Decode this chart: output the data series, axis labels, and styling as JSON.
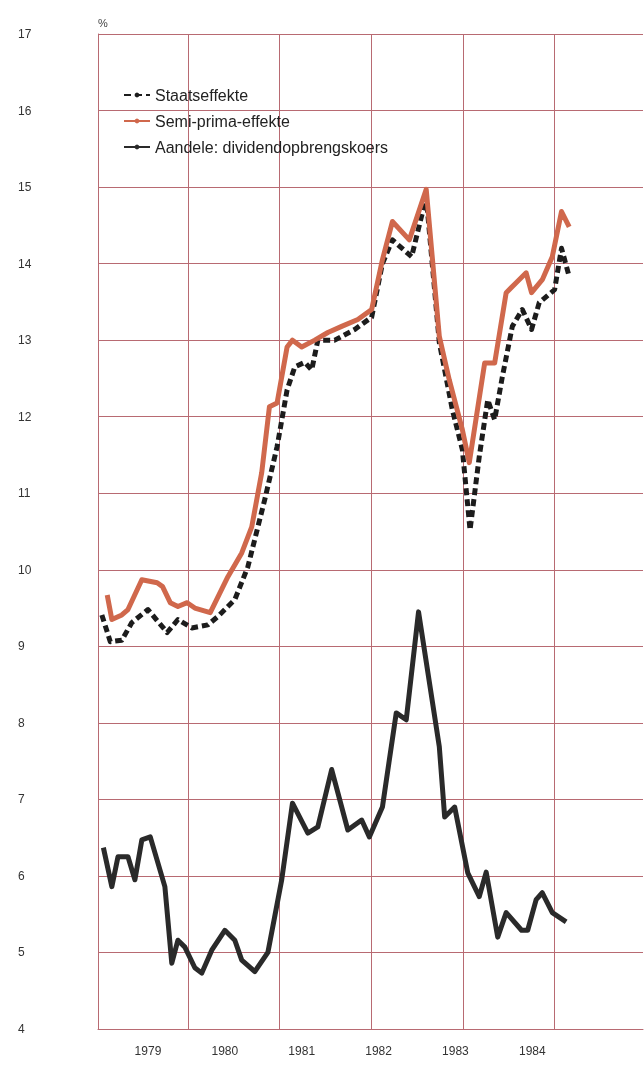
{
  "chart_data": {
    "type": "line",
    "ylabel": "%",
    "xlim": [
      1978.85,
      1985.94
    ],
    "ylim": [
      4,
      17
    ],
    "xticks": [
      {
        "value": 1979.5,
        "label": "1979"
      },
      {
        "value": 1980.5,
        "label": "1980"
      },
      {
        "value": 1981.5,
        "label": "1981"
      },
      {
        "value": 1982.5,
        "label": "1982"
      },
      {
        "value": 1983.5,
        "label": "1983"
      },
      {
        "value": 1984.5,
        "label": "1984"
      },
      {
        "value": 1980.03,
        "label": null
      },
      {
        "value": 1981.21,
        "label": null
      },
      {
        "value": 1982.41,
        "label": null
      },
      {
        "value": 1983.6,
        "label": null
      },
      {
        "value": 1984.79,
        "label": null
      }
    ],
    "yticks": [
      4,
      5,
      6,
      7,
      8,
      9,
      10,
      11,
      12,
      13,
      14,
      15,
      16,
      17
    ],
    "grid": true,
    "legend": "top left",
    "marker": "none",
    "series": [
      {
        "name": "Staatseffekte",
        "color": "#1c1c1c",
        "line_style": "dashed",
        "x": [
          1978.9,
          1979.01,
          1979.16,
          1979.29,
          1979.5,
          1979.75,
          1979.89,
          1980.07,
          1980.28,
          1980.41,
          1980.63,
          1980.8,
          1981.02,
          1981.18,
          1981.31,
          1981.41,
          1981.54,
          1981.63,
          1981.71,
          1981.93,
          1982.19,
          1982.41,
          1982.55,
          1982.68,
          1982.93,
          1983.12,
          1983.29,
          1983.46,
          1983.59,
          1983.69,
          1983.81,
          1983.92,
          1984.01,
          1984.11,
          1984.24,
          1984.37,
          1984.49,
          1984.59,
          1984.79,
          1984.88,
          1984.98
        ],
        "values": [
          9.41,
          9.06,
          9.08,
          9.31,
          9.48,
          9.18,
          9.35,
          9.24,
          9.28,
          9.39,
          9.61,
          10.04,
          10.92,
          11.61,
          12.35,
          12.65,
          12.71,
          12.61,
          13.0,
          13.0,
          13.14,
          13.3,
          14.0,
          14.31,
          14.09,
          14.87,
          12.97,
          12.09,
          11.57,
          10.52,
          11.48,
          12.22,
          11.96,
          12.52,
          13.18,
          13.4,
          13.14,
          13.49,
          13.66,
          14.2,
          13.83
        ]
      },
      {
        "name": "Semi-prima-effekte",
        "color": "#d0684c",
        "line_style": "solid",
        "x": [
          1978.97,
          1979.03,
          1979.16,
          1979.24,
          1979.42,
          1979.62,
          1979.69,
          1979.79,
          1979.89,
          1980.01,
          1980.11,
          1980.31,
          1980.54,
          1980.72,
          1980.85,
          1980.98,
          1981.08,
          1981.18,
          1981.31,
          1981.38,
          1981.5,
          1981.67,
          1981.84,
          1982.02,
          1982.23,
          1982.41,
          1982.55,
          1982.68,
          1982.9,
          1983.12,
          1983.29,
          1983.42,
          1983.59,
          1983.68,
          1983.88,
          1984.01,
          1984.16,
          1984.29,
          1984.42,
          1984.49,
          1984.63,
          1984.76,
          1984.88,
          1984.98
        ],
        "values": [
          9.67,
          9.35,
          9.41,
          9.48,
          9.87,
          9.83,
          9.78,
          9.57,
          9.52,
          9.57,
          9.5,
          9.44,
          9.91,
          10.22,
          10.56,
          11.27,
          12.13,
          12.18,
          12.91,
          13.0,
          12.91,
          13.0,
          13.1,
          13.18,
          13.27,
          13.4,
          14.05,
          14.55,
          14.31,
          14.97,
          13.05,
          12.48,
          11.83,
          11.4,
          12.7,
          12.7,
          13.62,
          13.75,
          13.88,
          13.62,
          13.79,
          14.09,
          14.68,
          14.48
        ]
      },
      {
        "name": "Aandele: dividendopbrengskoers",
        "color": "#2a2a2a",
        "line_style": "solid",
        "x": [
          1978.92,
          1979.03,
          1979.11,
          1979.24,
          1979.33,
          1979.42,
          1979.53,
          1979.72,
          1979.81,
          1979.89,
          1979.98,
          1980.11,
          1980.2,
          1980.33,
          1980.5,
          1980.63,
          1980.72,
          1980.89,
          1981.06,
          1981.24,
          1981.38,
          1981.58,
          1981.71,
          1981.89,
          1982.1,
          1982.28,
          1982.38,
          1982.55,
          1982.73,
          1982.86,
          1983.02,
          1983.29,
          1983.36,
          1983.49,
          1983.66,
          1983.81,
          1983.9,
          1984.05,
          1984.16,
          1984.36,
          1984.44,
          1984.55,
          1984.63,
          1984.76,
          1984.94
        ],
        "values": [
          6.37,
          5.86,
          6.25,
          6.25,
          5.95,
          6.47,
          6.51,
          5.86,
          4.86,
          5.16,
          5.07,
          4.8,
          4.73,
          5.03,
          5.29,
          5.16,
          4.9,
          4.75,
          5.0,
          5.95,
          6.95,
          6.56,
          6.64,
          7.39,
          6.6,
          6.73,
          6.51,
          6.9,
          8.13,
          8.04,
          9.45,
          7.69,
          6.77,
          6.9,
          6.04,
          5.73,
          6.05,
          5.2,
          5.52,
          5.29,
          5.29,
          5.69,
          5.78,
          5.52,
          5.4
        ]
      }
    ]
  }
}
